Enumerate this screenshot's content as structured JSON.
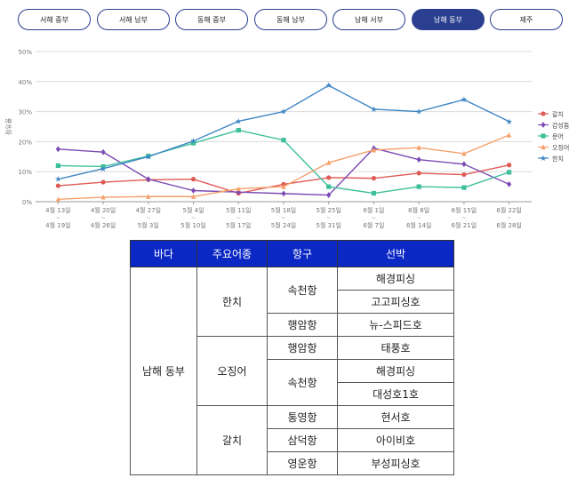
{
  "tabs": [
    {
      "label": "서해 중부",
      "active": false
    },
    {
      "label": "서해 남부",
      "active": false
    },
    {
      "label": "동해 중부",
      "active": false
    },
    {
      "label": "동해 남부",
      "active": false
    },
    {
      "label": "남해 서부",
      "active": false
    },
    {
      "label": "남해 동부",
      "active": true
    },
    {
      "label": "제주",
      "active": false
    }
  ],
  "chart_data": {
    "type": "line",
    "ylabel": "점유율",
    "ylim": [
      0,
      50
    ],
    "yticks": [
      "0%",
      "10%",
      "20%",
      "30%",
      "40%",
      "50%"
    ],
    "categories": [
      {
        "start": "4월 13일",
        "sep": "~",
        "end": "4월 19일"
      },
      {
        "start": "4월 20일",
        "sep": "~",
        "end": "4월 26일"
      },
      {
        "start": "4월 27일",
        "sep": "~",
        "end": "5월 3일"
      },
      {
        "start": "5월 4일",
        "sep": "~",
        "end": "5월 10일"
      },
      {
        "start": "5월 11일",
        "sep": "~",
        "end": "5월 17일"
      },
      {
        "start": "5월 18일",
        "sep": "~",
        "end": "5월 24일"
      },
      {
        "start": "5월 25일",
        "sep": "~",
        "end": "5월 31일"
      },
      {
        "start": "6월 1일",
        "sep": "~",
        "end": "6월 7일"
      },
      {
        "start": "6월 8일",
        "sep": "~",
        "end": "6월 14일"
      },
      {
        "start": "6월 15일",
        "sep": "~",
        "end": "6월 21일"
      },
      {
        "start": "6월 22일",
        "sep": "~",
        "end": "6월 28일"
      }
    ],
    "series": [
      {
        "name": "갈치",
        "color": "#e05a55",
        "marker": "circle",
        "values": [
          5.3,
          6.5,
          7.3,
          7.5,
          2.8,
          5.8,
          8.0,
          7.8,
          9.5,
          9.0,
          12.2
        ]
      },
      {
        "name": "갑성돔",
        "color": "#7b4bb5",
        "marker": "diamond",
        "values": [
          17.5,
          16.5,
          7.5,
          3.7,
          3.2,
          2.7,
          2.2,
          17.8,
          14.0,
          12.5,
          5.8
        ]
      },
      {
        "name": "문어",
        "color": "#3cbf9a",
        "marker": "square",
        "values": [
          12.0,
          11.7,
          15.2,
          19.5,
          23.8,
          20.5,
          5.0,
          2.8,
          5.0,
          4.7,
          9.8
        ]
      },
      {
        "name": "오징어",
        "color": "#f5a06b",
        "marker": "triangle",
        "values": [
          0.8,
          1.5,
          1.7,
          1.7,
          4.3,
          5.0,
          13.0,
          17.2,
          18.0,
          16.0,
          22.2
        ]
      },
      {
        "name": "한치",
        "color": "#3f86c5",
        "marker": "star",
        "values": [
          7.5,
          11.0,
          15.0,
          20.2,
          26.8,
          30.0,
          38.7,
          30.8,
          30.0,
          34.0,
          26.7
        ]
      }
    ]
  },
  "table": {
    "headers": [
      "바다",
      "주요어종",
      "항구",
      "선박"
    ],
    "sea": "남해 동부",
    "species": [
      "한치",
      "오징어",
      "갈치"
    ],
    "ports": [
      "속천항",
      "행암항",
      "행암항",
      "속천항",
      "통영항",
      "삼덕항",
      "영운항"
    ],
    "vessels": [
      "해경피싱",
      "고고피싱호",
      "뉴-스피드호",
      "태풍호",
      "해경피싱",
      "대성호1호",
      "현서호",
      "아이비호",
      "부성피싱호"
    ]
  }
}
